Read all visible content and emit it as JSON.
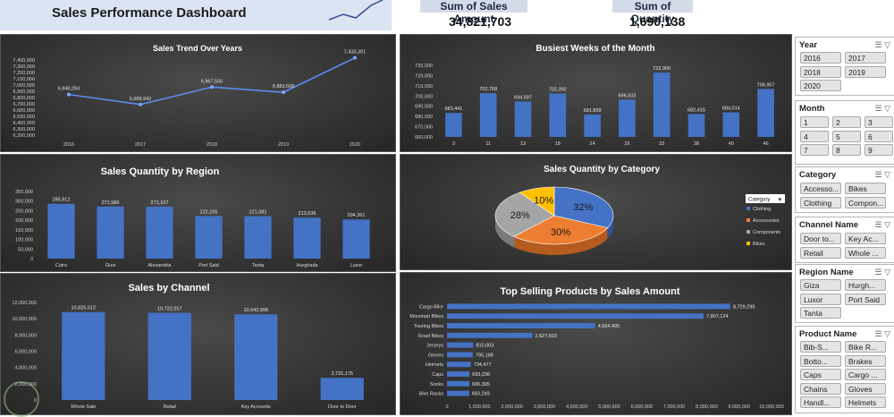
{
  "header": {
    "title": "Sales Performance Dashboard"
  },
  "kpis": [
    {
      "label": "Sum of Sales Amount",
      "value": "34,821,703"
    },
    {
      "label": "Sum of Quantity",
      "value": "1,690,138"
    }
  ],
  "colors": {
    "bar": "#4472c4",
    "panel": "#3a3a3a",
    "line": "#5b8def"
  },
  "charts": {
    "trend": {
      "title": "Sales Trend Over Years"
    },
    "weeks": {
      "title": "Busiest Weeks of the Month"
    },
    "region": {
      "title": "Sales Quantity by Region"
    },
    "category": {
      "title": "Sales Quantity by Category",
      "legend_title": "Category"
    },
    "channel": {
      "title": "Sales by Channel"
    },
    "products": {
      "title": "Top Selling Products by Sales Amount"
    }
  },
  "chart_data": [
    {
      "type": "line",
      "title": "Sales Trend Over Years",
      "categories": [
        "2016",
        "2017",
        "2018",
        "2019",
        "2020"
      ],
      "values": [
        6848284,
        6688942,
        6967505,
        6883668,
        7433301
      ],
      "value_labels": [
        "6,848,284",
        "6,688,942",
        "6,967,505",
        "6,883,668",
        "7,433,301"
      ],
      "ylim": [
        6200000,
        7400000
      ],
      "yticks": [
        "6,200,000",
        "6,300,000",
        "6,400,000",
        "6,500,000",
        "6,600,000",
        "6,700,000",
        "6,800,000",
        "6,900,000",
        "7,000,000",
        "7,100,000",
        "7,200,000",
        "7,300,000",
        "7,400,000"
      ]
    },
    {
      "type": "bar",
      "title": "Busiest Weeks of the Month",
      "categories": [
        "3",
        "11",
        "13",
        "18",
        "24",
        "29",
        "33",
        "38",
        "40",
        "46"
      ],
      "values": [
        683441,
        702768,
        694597,
        702392,
        681839,
        696503,
        722900,
        682415,
        684014,
        706907
      ],
      "value_labels": [
        "683,441",
        "702,768",
        "694,597",
        "702,392",
        "681,839",
        "696,503",
        "722,900",
        "682,415",
        "684,014",
        "706,907"
      ],
      "ylim": [
        660000,
        730000
      ],
      "yticks": [
        "660,000",
        "670,000",
        "680,000",
        "690,000",
        "700,000",
        "710,000",
        "720,000",
        "730,000"
      ]
    },
    {
      "type": "bar",
      "title": "Sales Quantity by Region",
      "categories": [
        "Cairo",
        "Giza",
        "Alexandria",
        "Port Said",
        "Tanta",
        "Hurghada",
        "Luxor"
      ],
      "values": [
        285912,
        271586,
        271107,
        222155,
        221081,
        213636,
        204261
      ],
      "value_labels": [
        "285,912",
        "271,586",
        "271,107",
        "222,155",
        "221,081",
        "213,636",
        "204,261"
      ],
      "ylim": [
        0,
        350000
      ],
      "yticks": [
        "0",
        "50,000",
        "100,000",
        "150,000",
        "200,000",
        "250,000",
        "300,000",
        "350,000"
      ]
    },
    {
      "type": "pie",
      "title": "Sales Quantity by Category",
      "categories": [
        "Clothing",
        "Accessories",
        "Components",
        "Bikes"
      ],
      "values": [
        32,
        30,
        28,
        10
      ],
      "value_labels": [
        "32%",
        "30%",
        "28%",
        "10%"
      ],
      "colors": [
        "#4472c4",
        "#ed7d31",
        "#a5a5a5",
        "#ffc000"
      ]
    },
    {
      "type": "bar",
      "title": "Sales by Channel",
      "categories": [
        "Whole Sale",
        "Retail",
        "Key Accounts",
        "Door to Door"
      ],
      "values": [
        10825512,
        10722017,
        10542998,
        2731175
      ],
      "value_labels": [
        "10,825,512",
        "10,722,017",
        "10,542,998",
        "2,731,175"
      ],
      "ylim": [
        0,
        12000000
      ],
      "yticks": [
        "0",
        "2,000,000",
        "4,000,000",
        "6,000,000",
        "8,000,000",
        "10,000,000",
        "12,000,000"
      ]
    },
    {
      "type": "bar",
      "orientation": "horizontal",
      "title": "Top Selling Products by Sales Amount",
      "categories": [
        "Cargo Bike",
        "Mountain Bikes",
        "Touring Bikes",
        "Road Bikes",
        "Jerseys",
        "Gloves",
        "Helmets",
        "Caps",
        "Socks",
        "Bike Racks"
      ],
      "category_labels": [
        "Cargo Bike",
        "Mountain Bikes",
        "Touring Bikes",
        "Road Bikes",
        "Jerseys",
        "Gloves",
        "Helmets",
        "Caps",
        "Socks",
        "Bike Racks"
      ],
      "values": [
        8729299,
        7907124,
        4564495,
        2627603,
        810003,
        795168,
        734477,
        693236,
        690305,
        683249
      ],
      "value_labels": [
        "8,729,299",
        "7,907,124",
        "4,564,495",
        "2,627,603",
        "810,003",
        "795,168",
        "734,477",
        "693,236",
        "690,305",
        "683,249"
      ],
      "xlim": [
        0,
        10000000
      ],
      "xticks": [
        "0",
        "1,000,000",
        "2,000,000",
        "3,000,000",
        "4,000,000",
        "5,000,000",
        "6,000,000",
        "7,000,000",
        "8,000,000",
        "9,000,000",
        "10,000,000"
      ]
    }
  ],
  "slicers": [
    {
      "title": "Year",
      "items": [
        "2016",
        "2017",
        "2018",
        "2019",
        "2020"
      ]
    },
    {
      "title": "Month",
      "items": [
        "1",
        "2",
        "3",
        "4",
        "5",
        "6",
        "7",
        "8",
        "9"
      ]
    },
    {
      "title": "Category",
      "items": [
        "Accesso...",
        "Bikes",
        "Clothing",
        "Compon..."
      ]
    },
    {
      "title": "Channel Name",
      "items": [
        "Door to...",
        "Key Ac...",
        "Retail",
        "Whole ..."
      ]
    },
    {
      "title": "Region Name",
      "items": [
        "Giza",
        "Hurgh...",
        "Luxor",
        "Port Said",
        "Tanta"
      ]
    },
    {
      "title": "Product Name",
      "items": [
        "Bib-S...",
        "Bike R...",
        "Botto...",
        "Brakes",
        "Caps",
        "Cargo ...",
        "Chains",
        "Gloves",
        "Handl...",
        "Helmets"
      ]
    }
  ],
  "icons": {
    "filter": "filter-icon",
    "multiselect": "multiselect-icon",
    "logo": "logo-icon",
    "header_chart": "sparkline-icon"
  }
}
